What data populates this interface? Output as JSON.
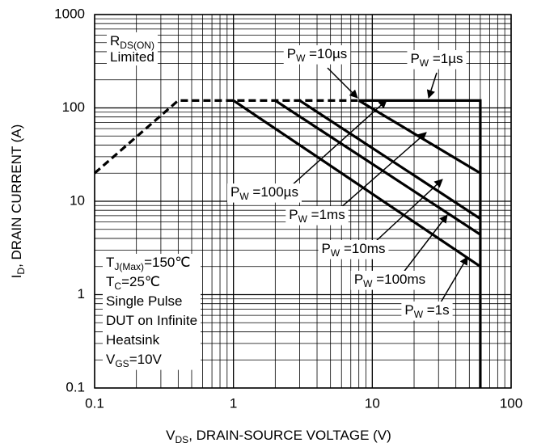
{
  "chart_data": {
    "type": "line",
    "x_label": {
      "text": "V",
      "sub": "DS",
      "after": ", DRAIN-SOURCE VOLTAGE (V)"
    },
    "y_label": {
      "text": "I",
      "sub": "D",
      "after": ", DRAIN CURRENT (A)"
    },
    "xscale": "log",
    "yscale": "log",
    "xlim": [
      0.1,
      100
    ],
    "ylim": [
      0.1,
      1000
    ],
    "xticks": [
      0.1,
      1,
      10,
      100
    ],
    "yticks": [
      0.1,
      1,
      10,
      100,
      1000
    ],
    "grid": true,
    "minor_grid": true,
    "series": [
      {
        "color": "#000000",
        "dash": true,
        "x": [
          0.1,
          0.4,
          8
        ],
        "values": [
          20,
          120,
          120
        ]
      },
      {
        "color": "#000000",
        "dash": false,
        "x": [
          8,
          60,
          60
        ],
        "values": [
          120,
          120,
          0.1
        ]
      },
      {
        "color": "#000000",
        "dash": false,
        "x": [
          8,
          60
        ],
        "values": [
          120,
          20
        ]
      },
      {
        "color": "#000000",
        "dash": false,
        "x": [
          3,
          60
        ],
        "values": [
          120,
          6.5
        ]
      },
      {
        "color": "#000000",
        "dash": false,
        "x": [
          2,
          60
        ],
        "values": [
          120,
          4.4
        ]
      },
      {
        "color": "#000000",
        "dash": false,
        "x": [
          1,
          60
        ],
        "values": [
          120,
          2
        ]
      }
    ],
    "annotations": [
      {
        "text": "P",
        "sub": "W",
        "after": " =10µs"
      },
      {
        "text": "P",
        "sub": "W",
        "after": " =1µs"
      },
      {
        "text": "P",
        "sub": "W",
        "after": " =100µs"
      },
      {
        "text": "P",
        "sub": "W",
        "after": " =1ms"
      },
      {
        "text": "P",
        "sub": "W",
        "after": " =10ms"
      },
      {
        "text": "P",
        "sub": "W",
        "after": " =100ms"
      },
      {
        "text": "P",
        "sub": "W",
        "after": " =1s"
      }
    ],
    "limit_note": [
      {
        "text": "R",
        "sub": "DS(ON)",
        "after": ""
      },
      "Limited"
    ],
    "conditions": [
      {
        "text": "T",
        "sub": "J(Max)",
        "after": "=150℃"
      },
      {
        "text": "T",
        "sub": "C",
        "after": "=25℃"
      },
      "Single Pulse",
      "DUT on Infinite",
      "Heatsink",
      {
        "text": "V",
        "sub": "GS",
        "after": "=10V"
      }
    ]
  }
}
